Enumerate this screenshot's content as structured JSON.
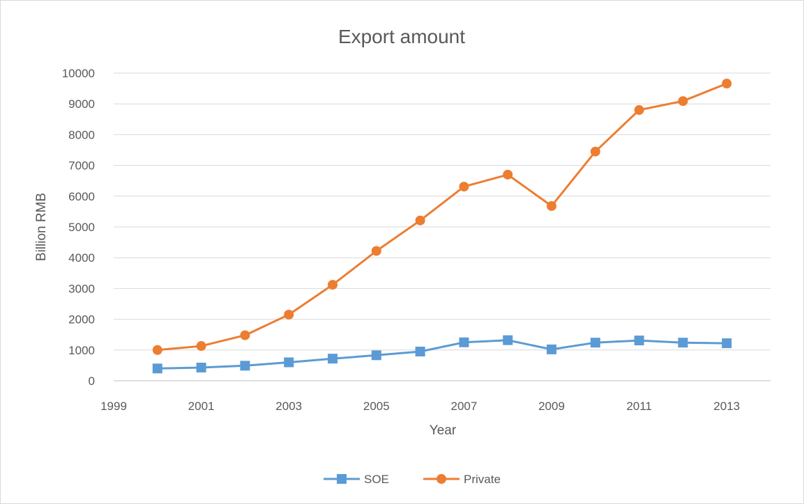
{
  "chart_data": {
    "type": "line",
    "title": "Export amount",
    "xlabel": "Year",
    "ylabel": "Billion RMB",
    "xlim": [
      1999,
      2014
    ],
    "ylim": [
      0,
      10000
    ],
    "x_ticks": [
      "1999",
      "2001",
      "2003",
      "2005",
      "2007",
      "2009",
      "2011",
      "2013"
    ],
    "y_ticks": [
      "0",
      "1000",
      "2000",
      "3000",
      "4000",
      "5000",
      "6000",
      "7000",
      "8000",
      "9000",
      "10000"
    ],
    "grid": true,
    "legend_position": "bottom",
    "x": [
      2000,
      2001,
      2002,
      2003,
      2004,
      2005,
      2006,
      2007,
      2008,
      2009,
      2010,
      2011,
      2012,
      2013
    ],
    "series": [
      {
        "name": "SOE",
        "color": "#5b9bd5",
        "marker": "square",
        "values": [
          400,
          430,
          490,
          600,
          720,
          830,
          950,
          1250,
          1320,
          1020,
          1240,
          1310,
          1240,
          1220
        ]
      },
      {
        "name": "Private",
        "color": "#ed7d31",
        "marker": "circle",
        "values": [
          1000,
          1130,
          1480,
          2150,
          3120,
          4220,
          5210,
          6310,
          6700,
          5680,
          7450,
          8800,
          9090,
          9660
        ]
      }
    ]
  }
}
